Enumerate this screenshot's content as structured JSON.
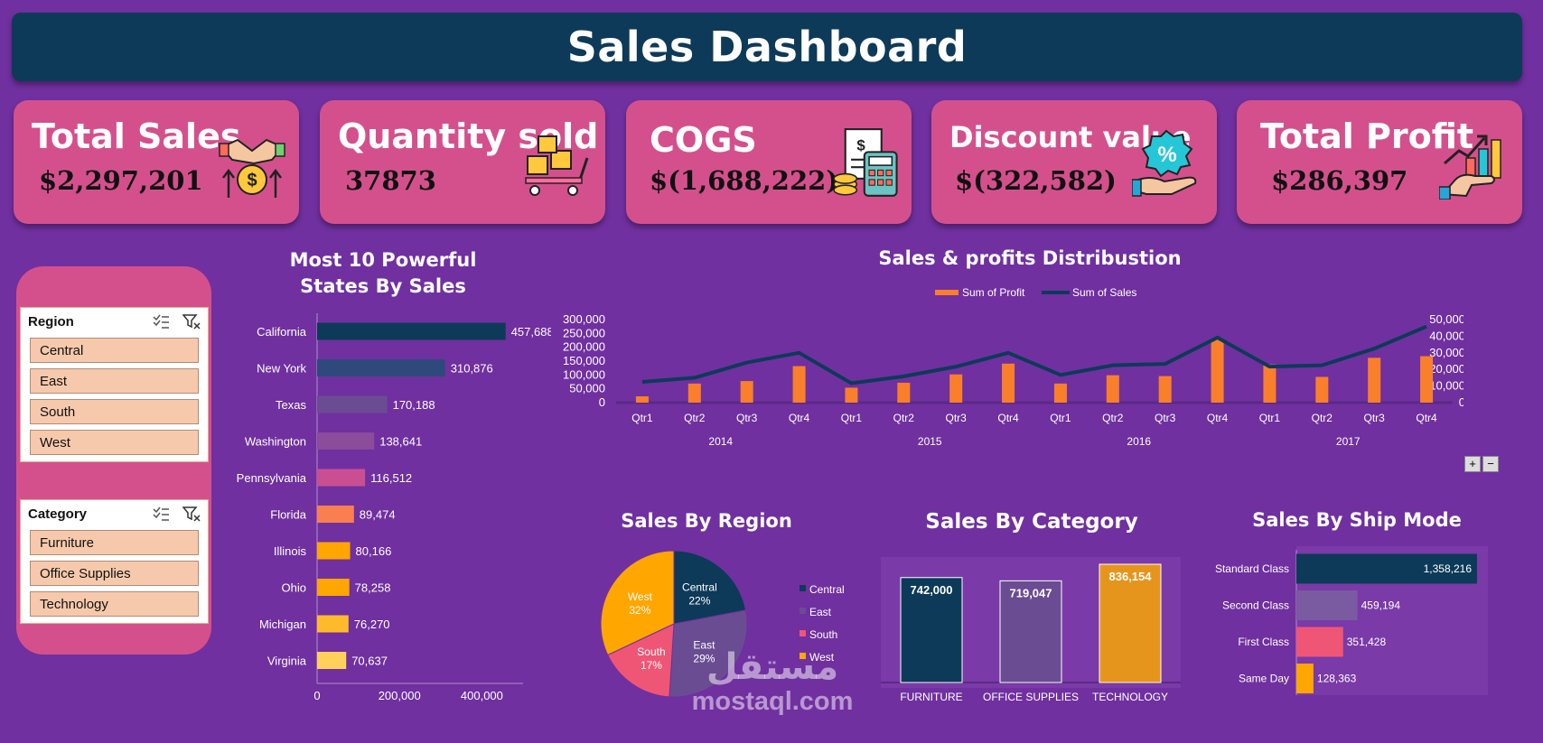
{
  "title": "Sales Dashboard",
  "colors": {
    "background": "#7030a0",
    "title_bar": "#0d3a58",
    "card": "#d4508d",
    "slicer_button": "#f6c9ad"
  },
  "kpis": [
    {
      "label": "Total Sales",
      "value": "$2,297,201",
      "icon": "handshake-dollar-icon"
    },
    {
      "label": "Quantity sold",
      "value": "37873",
      "icon": "boxes-trolley-icon"
    },
    {
      "label": "COGS",
      "value": "$(1,688,222)",
      "icon": "invoice-calculator-icon"
    },
    {
      "label": "Discount value",
      "value": "$(322,582)",
      "icon": "percent-hand-icon"
    },
    {
      "label": "Total Profit",
      "value": "$286,397",
      "icon": "growth-chart-hand-icon"
    }
  ],
  "slicers": {
    "region": {
      "title": "Region",
      "items": [
        "Central",
        "East",
        "South",
        "West"
      ]
    },
    "category": {
      "title": "Category",
      "items": [
        "Furniture",
        "Office Supplies",
        "Technology"
      ]
    }
  },
  "watermark": {
    "arabic": "مستقل",
    "latin": "mostaql.com"
  },
  "chart_data": [
    {
      "type": "bar",
      "orientation": "horizontal",
      "title": "Most 10 Powerful States By Sales",
      "categories": [
        "California",
        "New York",
        "Texas",
        "Washington",
        "Pennsylvania",
        "Florida",
        "Illinois",
        "Ohio",
        "Michigan",
        "Virginia"
      ],
      "values": [
        457688,
        310876,
        170188,
        138641,
        116512,
        89474,
        80166,
        78258,
        76270,
        70637
      ],
      "labels": [
        "457,688",
        "310,876",
        "170,188",
        "138,641",
        "116,512",
        "89,474",
        "80,166",
        "78,258",
        "76,270",
        "70,637"
      ],
      "xticks": [
        "0",
        "200,000",
        "400,000"
      ],
      "xlim": [
        0,
        500000
      ],
      "colors": [
        "#0d3a58",
        "#2e4a7a",
        "#6a4c93",
        "#8a4c9b",
        "#c94f92",
        "#fa7f50",
        "#ffa600",
        "#ffa600",
        "#ffba2b",
        "#ffd15a"
      ]
    },
    {
      "type": "line+bar",
      "title": "Sales & profits Distribustion",
      "legend": [
        "Sum of Profit",
        "Sum of Sales"
      ],
      "quarters": [
        "Qtr1",
        "Qtr2",
        "Qtr3",
        "Qtr4",
        "Qtr1",
        "Qtr2",
        "Qtr3",
        "Qtr4",
        "Qtr1",
        "Qtr2",
        "Qtr3",
        "Qtr4",
        "Qtr1",
        "Qtr2",
        "Qtr3",
        "Qtr4"
      ],
      "years": [
        "2014",
        "2015",
        "2016",
        "2017"
      ],
      "series": [
        {
          "name": "Sum of Profit",
          "axis": "right",
          "values": [
            3800,
            11500,
            13000,
            22000,
            9000,
            12000,
            17000,
            23500,
            11500,
            16500,
            16000,
            38000,
            23000,
            15500,
            27000,
            28000
          ]
        },
        {
          "name": "Sum of Sales",
          "axis": "left",
          "values": [
            75000,
            90000,
            145000,
            180000,
            70000,
            95000,
            130000,
            180000,
            100000,
            135000,
            140000,
            235000,
            130000,
            135000,
            195000,
            275000
          ]
        }
      ],
      "left_ticks": [
        "300,000",
        "250,000",
        "200,000",
        "150,000",
        "100,000",
        "50,000",
        "0"
      ],
      "ylim_left": [
        0,
        300000
      ],
      "right_ticks": [
        "50,000",
        "40,000",
        "30,000",
        "20,000",
        "10,000",
        "0"
      ],
      "ylim_right": [
        0,
        50000
      ]
    },
    {
      "type": "pie",
      "title": "Sales By Region",
      "slices": [
        {
          "name": "Central",
          "pct": 22,
          "label": "22%",
          "color": "#0d3a58"
        },
        {
          "name": "East",
          "pct": 29,
          "label": "29%",
          "color": "#6a4c93"
        },
        {
          "name": "South",
          "pct": 17,
          "label": "17%",
          "color": "#ef5675"
        },
        {
          "name": "West",
          "pct": 32,
          "label": "32%",
          "color": "#ffa600"
        }
      ]
    },
    {
      "type": "bar",
      "title": "Sales By Category",
      "categories": [
        "FURNITURE",
        "OFFICE SUPPLIES",
        "TECHNOLOGY"
      ],
      "values": [
        742000,
        719047,
        836154
      ],
      "labels": [
        "742,000",
        "719,047",
        "836,154"
      ],
      "colors": [
        "#0d3a58",
        "#6a4c93",
        "#e6951c"
      ]
    },
    {
      "type": "bar",
      "orientation": "horizontal",
      "title": "Sales By Ship Mode",
      "categories": [
        "Standard Class",
        "Second Class",
        "First Class",
        "Same Day"
      ],
      "values": [
        1358216,
        459194,
        351428,
        128363
      ],
      "labels": [
        "1,358,216",
        "459,194",
        "351,428",
        "128,363"
      ],
      "colors": [
        "#0d3a58",
        "#7a5aa0",
        "#ef5675",
        "#ffa600"
      ]
    }
  ]
}
